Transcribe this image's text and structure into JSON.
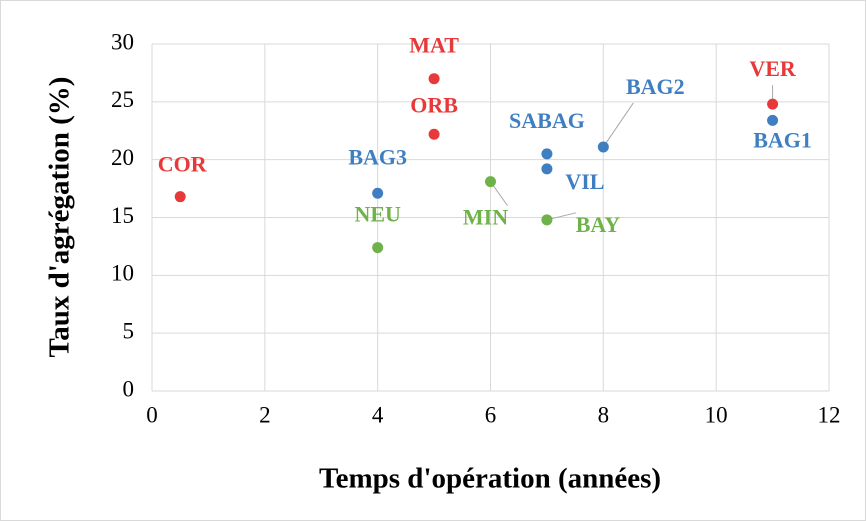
{
  "chart_data": {
    "type": "scatter",
    "xlabel": "Temps d'opération (années)",
    "ylabel": "Taux d'agrégation (%)",
    "xlim": [
      0,
      12
    ],
    "xticks": [
      0,
      2,
      4,
      6,
      8,
      10,
      12
    ],
    "ylim": [
      0,
      30
    ],
    "yticks": [
      0,
      5,
      10,
      15,
      20,
      25,
      30
    ],
    "grid": true,
    "series": [
      {
        "color": "#e8393a",
        "x": [
          0.5,
          5,
          5,
          11
        ],
        "values": [
          16.8,
          27,
          22.2,
          24.8
        ],
        "labels": [
          "COR",
          "MAT",
          "ORB",
          "VER"
        ]
      },
      {
        "color": "#3f7fc1",
        "x": [
          4,
          7,
          7,
          8,
          11
        ],
        "values": [
          17.1,
          20.5,
          19.2,
          21.1,
          23.4
        ],
        "labels": [
          "BAG3",
          "SABAG",
          "VIL",
          "BAG2",
          "BAG1"
        ]
      },
      {
        "color": "#6fb24a",
        "x": [
          4,
          6,
          7
        ],
        "values": [
          12.4,
          18.1,
          14.8
        ],
        "labels": [
          "NEU",
          "MIN",
          "BAY"
        ]
      }
    ]
  }
}
